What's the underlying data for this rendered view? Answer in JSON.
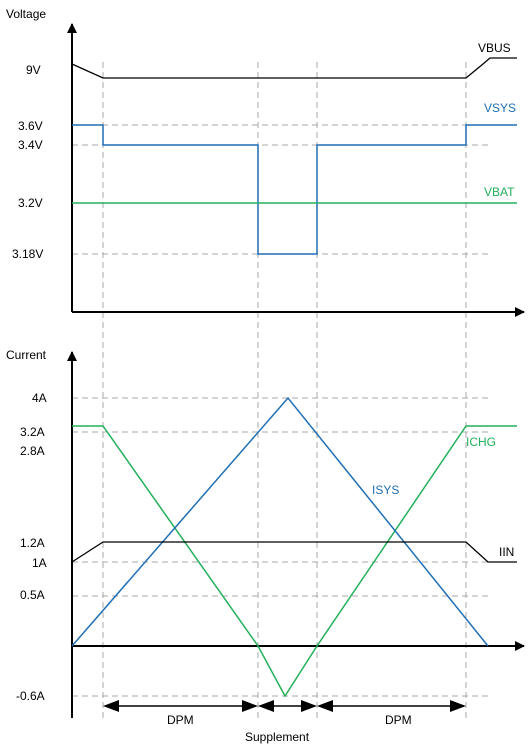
{
  "chart_data": [
    {
      "type": "line",
      "ylabel": "Voltage",
      "y_ticks": [
        "9V",
        "3.6V",
        "3.4V",
        "3.2V",
        "3.18V"
      ],
      "series": [
        {
          "name": "VBUS",
          "color": "#000000"
        },
        {
          "name": "VSYS",
          "color": "#1f6fb5"
        },
        {
          "name": "VBAT",
          "color": "#22b05a"
        }
      ]
    },
    {
      "type": "line",
      "ylabel": "Current",
      "y_ticks": [
        "4A",
        "3.2A",
        "2.8A",
        "1.2A",
        "1A",
        "0.5A",
        "-0.6A"
      ],
      "series": [
        {
          "name": "ICHG",
          "color": "#22b05a"
        },
        {
          "name": "ISYS",
          "color": "#1f6fb5"
        },
        {
          "name": "IIN",
          "color": "#000000"
        }
      ]
    }
  ],
  "annotations": {
    "dpm_left": "DPM",
    "dpm_right": "DPM",
    "supplement": "Supplement"
  }
}
